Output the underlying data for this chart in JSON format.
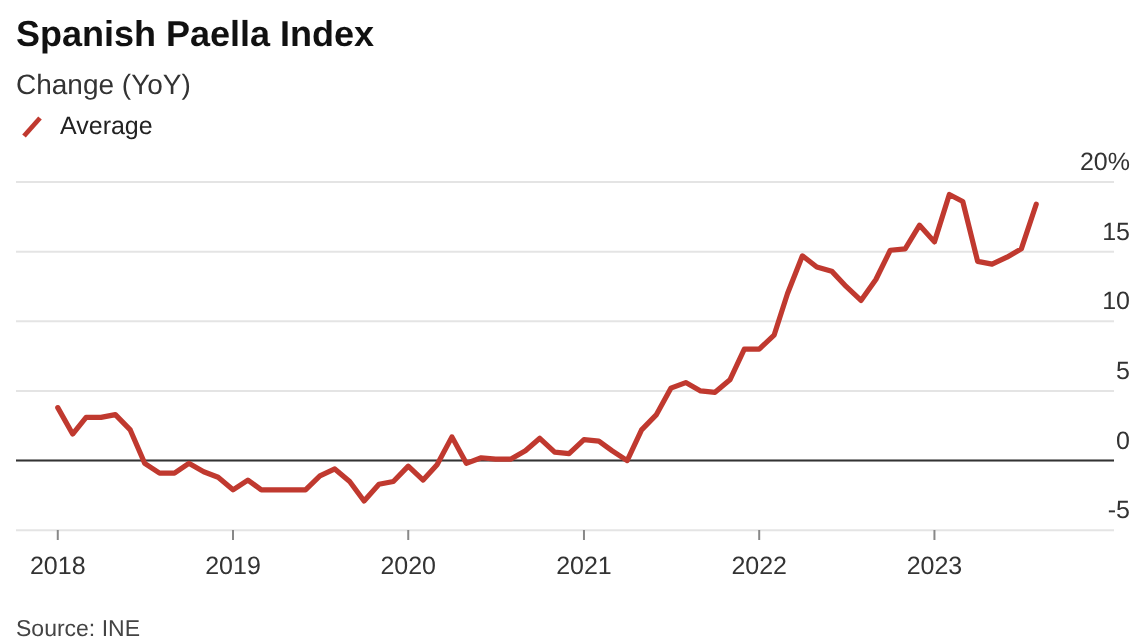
{
  "chart_data": {
    "type": "line",
    "title": "Spanish Paella Index",
    "subtitle": "Change (YoY)",
    "legend": "top left",
    "grid": "y",
    "x": [
      "2018-01",
      "2018-02",
      "2018-03",
      "2018-04",
      "2018-05",
      "2018-06",
      "2018-07",
      "2018-08",
      "2018-09",
      "2018-10",
      "2018-11",
      "2018-12",
      "2019-01",
      "2019-02",
      "2019-03",
      "2019-04",
      "2019-05",
      "2019-06",
      "2019-07",
      "2019-08",
      "2019-09",
      "2019-10",
      "2019-11",
      "2019-12",
      "2020-01",
      "2020-02",
      "2020-03",
      "2020-04",
      "2020-05",
      "2020-06",
      "2020-07",
      "2020-08",
      "2020-09",
      "2020-10",
      "2020-11",
      "2020-12",
      "2021-01",
      "2021-02",
      "2021-03",
      "2021-04",
      "2021-05",
      "2021-06",
      "2021-07",
      "2021-08",
      "2021-09",
      "2021-10",
      "2021-11",
      "2021-12",
      "2022-01",
      "2022-02",
      "2022-03",
      "2022-04",
      "2022-05",
      "2022-06",
      "2022-07",
      "2022-08",
      "2022-09",
      "2022-10",
      "2022-11",
      "2022-12",
      "2023-01",
      "2023-02",
      "2023-03",
      "2023-04",
      "2023-05",
      "2023-06",
      "2023-07",
      "2023-08"
    ],
    "series": [
      {
        "name": "Average",
        "color": "#c0392f",
        "values": [
          3.8,
          1.9,
          3.1,
          3.1,
          3.3,
          2.2,
          -0.2,
          -0.9,
          -0.9,
          -0.2,
          -0.8,
          -1.2,
          -2.1,
          -1.4,
          -2.1,
          -2.1,
          -2.1,
          -2.1,
          -1.1,
          -0.6,
          -1.5,
          -2.9,
          -1.7,
          -1.5,
          -0.4,
          -1.4,
          -0.3,
          1.7,
          -0.2,
          0.2,
          0.1,
          0.1,
          0.7,
          1.6,
          0.6,
          0.5,
          1.5,
          1.4,
          0.7,
          0,
          2.2,
          3.3,
          5.2,
          5.6,
          5.0,
          4.9,
          5.8,
          8.0,
          8.0,
          9.0,
          12.0,
          14.7,
          13.9,
          13.6,
          12.5,
          11.5,
          13.0,
          15.1,
          15.2,
          16.9,
          15.7,
          19.1,
          18.6,
          14.3,
          14.1,
          14.6,
          15.2,
          18.4
        ]
      }
    ],
    "xlim": [
      "2017-10-06",
      "2024-01-10"
    ],
    "xticks": [
      "2018",
      "2019",
      "2020",
      "2021",
      "2022",
      "2023"
    ],
    "ylim": [
      -5,
      20
    ],
    "yticks": [
      -5,
      0,
      5,
      10,
      15,
      {
        "value": 20,
        "label": "20%"
      }
    ],
    "ref_lines": [
      {
        "axis": "y",
        "value": 0,
        "color": "#333333"
      }
    ],
    "annotations": [
      "Source: INE"
    ]
  }
}
